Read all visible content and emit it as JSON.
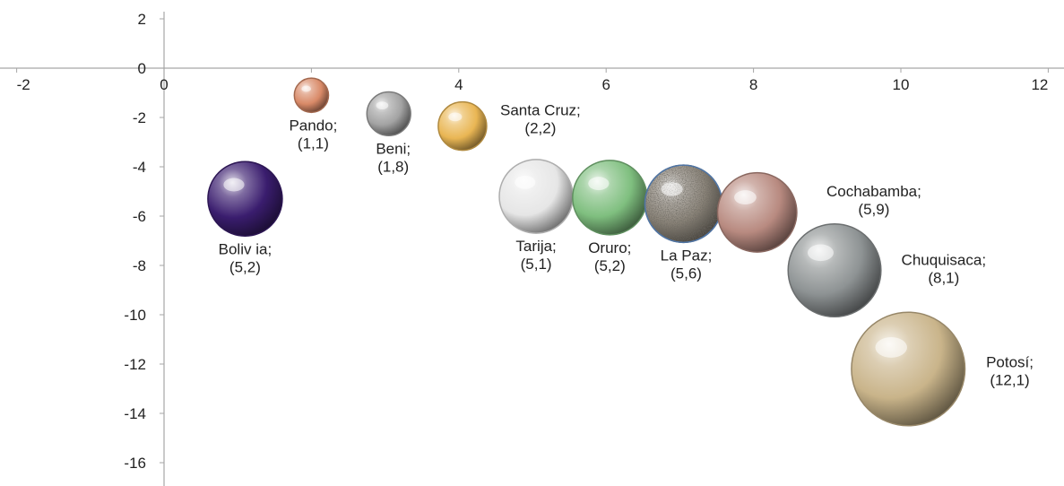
{
  "chart_data": {
    "type": "bubble",
    "title": "",
    "xlabel": "",
    "ylabel": "",
    "xlim": [
      -2,
      12
    ],
    "ylim": [
      -16,
      2
    ],
    "grid": false,
    "legend": "none",
    "x_ticks": [
      "-2",
      "0",
      "2",
      "4",
      "6",
      "8",
      "10",
      "12"
    ],
    "y_ticks": [
      "2",
      "0",
      "-2",
      "-4",
      "-6",
      "-8",
      "-10",
      "-12",
      "-14",
      "-16"
    ],
    "points": [
      {
        "name": "Bolivia",
        "label_line1": "Boliv ia;",
        "label_line2": "(5,2)",
        "x": 1.1,
        "y": -5.3,
        "size": 5.2,
        "color": "#3a1d6e",
        "style": "sphere"
      },
      {
        "name": "Pando",
        "label_line1": "Pando;",
        "label_line2": "(1,1)",
        "x": 2.0,
        "y": -1.1,
        "size": 1.1,
        "color": "#d98a68",
        "style": "sphere"
      },
      {
        "name": "Beni",
        "label_line1": "Beni;",
        "label_line2": "(1,8)",
        "x": 3.05,
        "y": -1.85,
        "size": 1.8,
        "color": "#a3a3a3",
        "style": "sphere"
      },
      {
        "name": "Santa Cruz",
        "label_line1": "Santa Cruz;",
        "label_line2": "(2,2)",
        "x": 4.05,
        "y": -2.35,
        "size": 2.2,
        "color": "#e9b654",
        "style": "sphere"
      },
      {
        "name": "Tarija",
        "label_line1": "Tarija;",
        "label_line2": "(5,1)",
        "x": 5.05,
        "y": -5.2,
        "size": 5.1,
        "color": "#e6e6e6",
        "style": "sphere"
      },
      {
        "name": "Oruro",
        "label_line1": "Oruro;",
        "label_line2": "(5,2)",
        "x": 6.05,
        "y": -5.25,
        "size": 5.2,
        "color": "#7fbf7f",
        "style": "sphere"
      },
      {
        "name": "La Paz",
        "label_line1": "La Paz;",
        "label_line2": "(5,6)",
        "x": 7.05,
        "y": -5.5,
        "size": 5.6,
        "color": "#8a8378",
        "style": "granite"
      },
      {
        "name": "Cochabamba",
        "label_line1": "Cochabamba;",
        "label_line2": "(5,9)",
        "x": 8.05,
        "y": -5.85,
        "size": 5.9,
        "color": "#b88a80",
        "style": "sphere"
      },
      {
        "name": "Chuquisaca",
        "label_line1": "Chuquisaca;",
        "label_line2": "(8,1)",
        "x": 9.1,
        "y": -8.2,
        "size": 8.1,
        "color": "#8e9394",
        "style": "sphere"
      },
      {
        "name": "Potosí",
        "label_line1": "Potosí;",
        "label_line2": "(12,1)",
        "x": 10.1,
        "y": -12.2,
        "size": 12.1,
        "color": "#c9b48a",
        "style": "sphere"
      }
    ]
  }
}
